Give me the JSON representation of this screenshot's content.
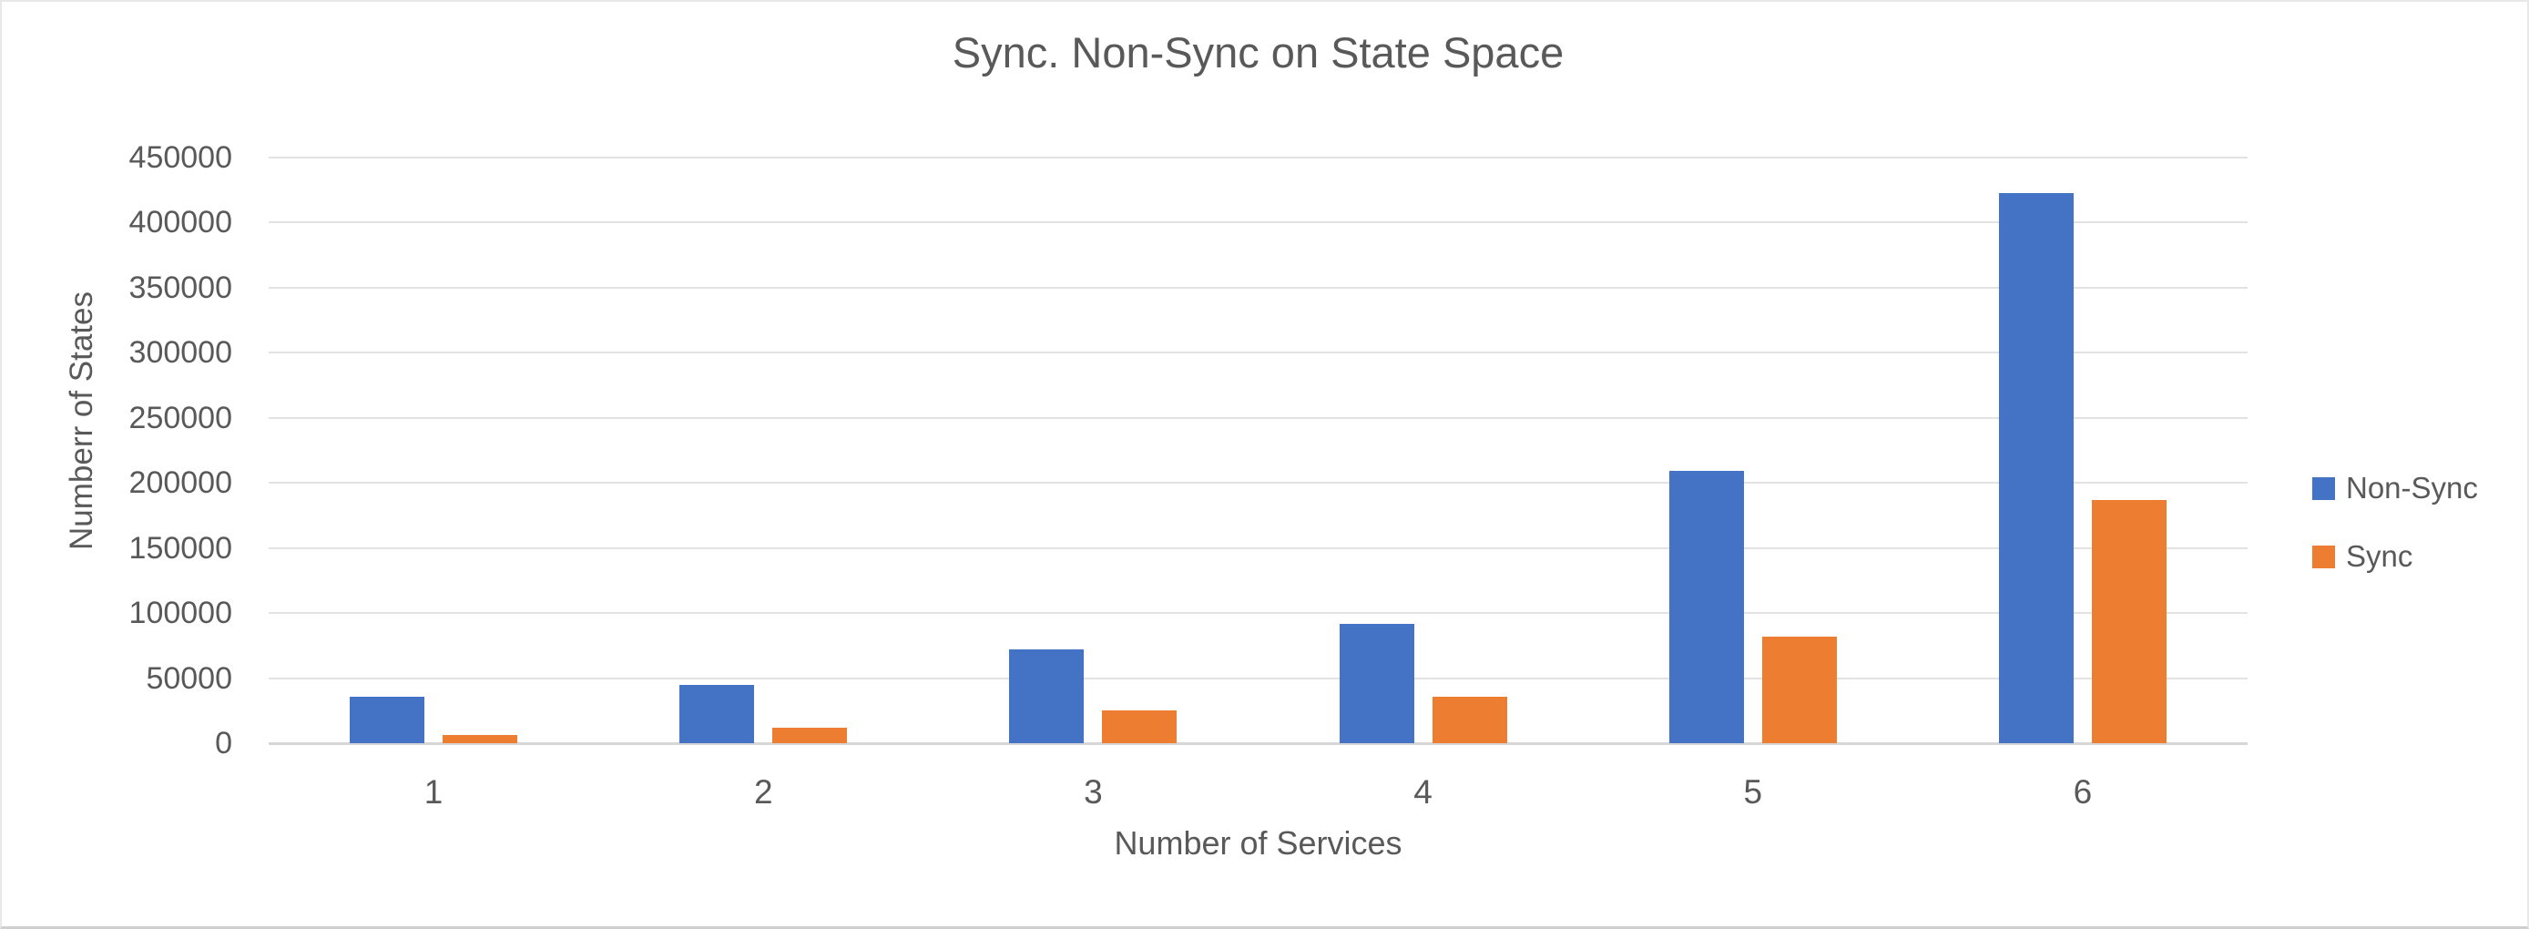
{
  "chart_data": {
    "type": "bar",
    "title": "Sync. Non-Sync on State Space",
    "xlabel": "Number of Services",
    "ylabel": "Numberr of States",
    "categories": [
      "1",
      "2",
      "3",
      "4",
      "5",
      "6"
    ],
    "series": [
      {
        "name": "Non-Sync",
        "color": "#4472C4",
        "values": [
          36000,
          45000,
          72000,
          92000,
          209000,
          423000
        ]
      },
      {
        "name": "Sync",
        "color": "#ED7D31",
        "values": [
          6000,
          12000,
          25000,
          36000,
          82000,
          187000
        ]
      }
    ],
    "ylim": [
      0,
      450000
    ],
    "ytick_step": 50000,
    "yticks": [
      "0",
      "50000",
      "100000",
      "150000",
      "200000",
      "250000",
      "300000",
      "350000",
      "400000",
      "450000"
    ],
    "grid": true,
    "legend_position": "right",
    "text_color": "#595959",
    "gridline_color": "#E2E2E2",
    "background_color": "#FFFFFF"
  }
}
